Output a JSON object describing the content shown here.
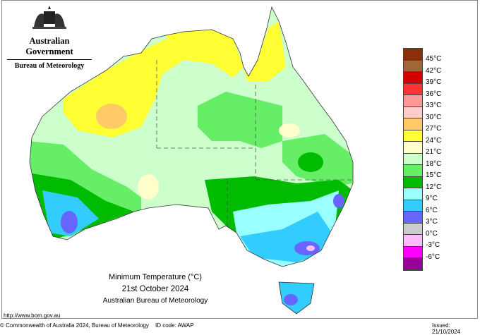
{
  "header": {
    "government": "Australian Government",
    "bureau": "Bureau of Meteorology"
  },
  "title": {
    "line1": "Minimum Temperature (°C)",
    "line2": "21st October 2024",
    "line3": "Australian Bureau of Meteorology"
  },
  "legend": {
    "colors": [
      "#8b2e0c",
      "#a0683a",
      "#d40000",
      "#ff3333",
      "#ff9999",
      "#ffcccc",
      "#ffc966",
      "#ffff33",
      "#ffffcc",
      "#ccffcc",
      "#66ee66",
      "#00bb00",
      "#99ffff",
      "#33ccff",
      "#6666ff",
      "#cccccc",
      "#ffbbff",
      "#ff00ff",
      "#990099"
    ],
    "labels": [
      "45°C",
      "42°C",
      "39°C",
      "36°C",
      "33°C",
      "30°C",
      "27°C",
      "24°C",
      "21°C",
      "18°C",
      "15°C",
      "12°C",
      "9°C",
      "6°C",
      "3°C",
      "0°C",
      "-3°C",
      "-6°C"
    ]
  },
  "footer": {
    "url": "http://www.bom.gov.au",
    "copyright": "© Commonwealth of Australia 2024, Bureau of Meteorology",
    "id_code": "ID code: AWAP",
    "issued": "Issued: 21/10/2024"
  }
}
